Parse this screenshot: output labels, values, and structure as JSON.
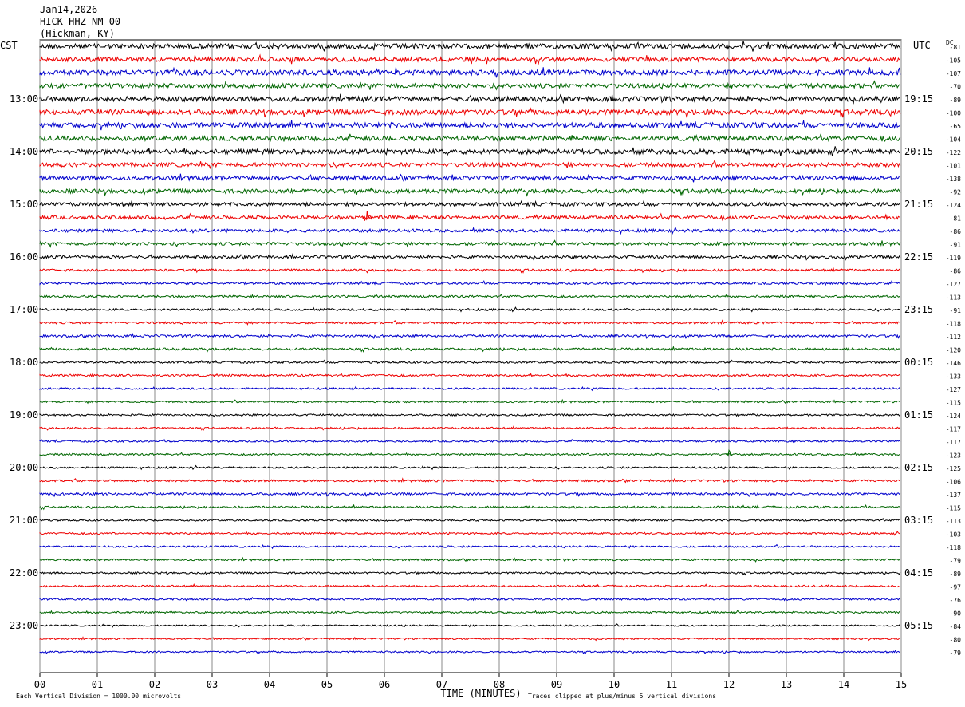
{
  "header": {
    "date": "Jan14,2026",
    "station": "HICK HHZ NM 00",
    "location": "(Hickman, KY)"
  },
  "chart_data": {
    "type": "helicorder",
    "left_axis_label": "CST",
    "right_axis_label": "UTC",
    "dc_label": "DC",
    "x_axis_label": "TIME (MINUTES)",
    "xlim": [
      0,
      15
    ],
    "x_ticks": [
      "00",
      "01",
      "02",
      "03",
      "04",
      "05",
      "06",
      "07",
      "08",
      "09",
      "10",
      "11",
      "12",
      "13",
      "14",
      "15"
    ],
    "colors": [
      "#000000",
      "#ee0000",
      "#0000cc",
      "#006600"
    ],
    "left_hour_labels": [
      "13:00",
      "14:00",
      "15:00",
      "16:00",
      "17:00",
      "18:00",
      "19:00",
      "20:00",
      "21:00",
      "22:00",
      "23:00"
    ],
    "right_hour_labels": [
      "19:15",
      "20:15",
      "21:15",
      "22:15",
      "23:15",
      "00:15",
      "01:15",
      "02:15",
      "03:15",
      "04:15",
      "05:15"
    ],
    "dc_offsets": [
      "-81",
      "-105",
      "-107",
      "-70",
      "-89",
      "-100",
      "-65",
      "-104",
      "-122",
      "-101",
      "-138",
      "-92",
      "-124",
      "-81",
      "-86",
      "-91",
      "-119",
      "-86",
      "-127",
      "-113",
      "-91",
      "-118",
      "-112",
      "-120",
      "-146",
      "-133",
      "-127",
      "-115",
      "-124",
      "-117",
      "-117",
      "-123",
      "-125",
      "-106",
      "-137",
      "-115",
      "-113",
      "-103",
      "-118",
      "-79",
      "-89",
      "-97",
      "-76",
      "-90",
      "-84",
      "-80",
      "-79"
    ],
    "trace_amplitude": [
      0.95,
      0.85,
      1.0,
      0.85,
      0.95,
      1.0,
      1.0,
      0.9,
      0.95,
      0.8,
      0.8,
      0.8,
      0.7,
      0.7,
      0.6,
      0.6,
      0.55,
      0.45,
      0.45,
      0.4,
      0.4,
      0.4,
      0.45,
      0.45,
      0.4,
      0.4,
      0.35,
      0.35,
      0.35,
      0.35,
      0.35,
      0.35,
      0.35,
      0.4,
      0.45,
      0.4,
      0.35,
      0.35,
      0.35,
      0.35,
      0.35,
      0.35,
      0.35,
      0.35,
      0.3,
      0.3,
      0.3
    ],
    "footer_left": "Each Vertical Division = 1000.00 microvolts",
    "footer_right": "Traces clipped at plus/minus 5 vertical divisions"
  }
}
